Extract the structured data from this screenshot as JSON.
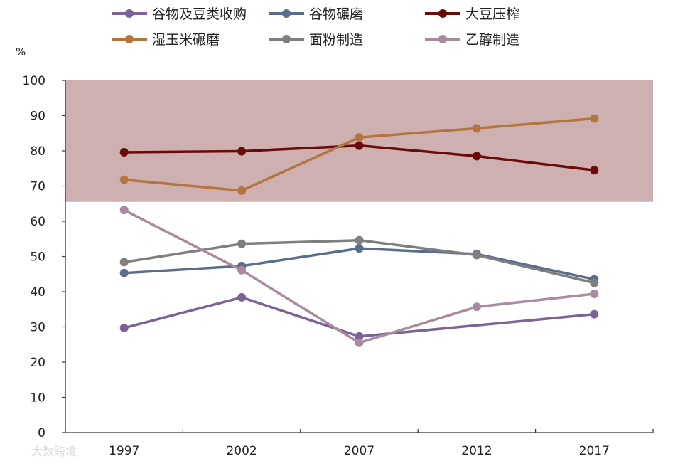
{
  "chart_data": {
    "type": "line",
    "title": "",
    "unit_label": "%",
    "xlabel": "",
    "ylabel": "",
    "categories": [
      "1997",
      "2002",
      "2007",
      "2012",
      "2017"
    ],
    "ylim": [
      0,
      100
    ],
    "yticks": [
      0,
      10,
      20,
      30,
      40,
      50,
      60,
      70,
      80,
      90,
      100
    ],
    "grid": false,
    "legend_position": "top",
    "highlight_band": {
      "from": 65.5,
      "to": 100,
      "color": "#cfb0b0"
    },
    "series": [
      {
        "name": "谷物及豆类收购",
        "color": "#7b6396",
        "values": [
          29.7,
          38.4,
          27.3,
          null,
          33.6
        ]
      },
      {
        "name": "谷物碾磨",
        "color": "#5c6d8c",
        "values": [
          45.3,
          47.3,
          52.3,
          50.7,
          43.5
        ]
      },
      {
        "name": "大豆压榨",
        "color": "#6b0a0a",
        "values": [
          79.6,
          79.9,
          81.5,
          78.5,
          74.5
        ]
      },
      {
        "name": "湿玉米碾磨",
        "color": "#b3743f",
        "values": [
          71.8,
          68.7,
          83.8,
          86.4,
          89.2
        ]
      },
      {
        "name": "面粉制造",
        "color": "#7f7f7f",
        "values": [
          48.4,
          53.6,
          54.6,
          50.4,
          42.5
        ]
      },
      {
        "name": "乙醇制造",
        "color": "#a98a9e",
        "values": [
          63.2,
          46.1,
          25.5,
          35.7,
          39.4
        ]
      }
    ]
  },
  "watermark": "大数跨境"
}
